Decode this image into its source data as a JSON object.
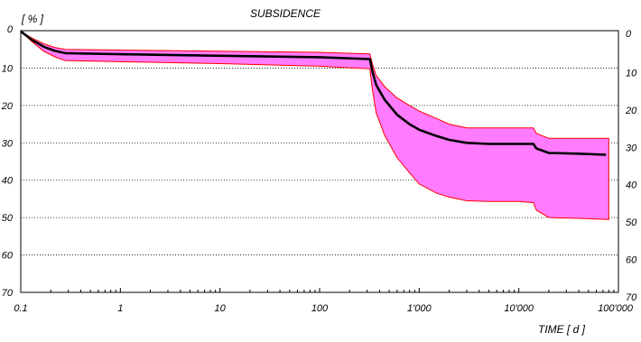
{
  "chart_data": {
    "type": "area",
    "title": "SUBSIDENCE",
    "ylabel": "[ % ]",
    "xlabel": "TIME  [ d ]",
    "x_scale": "log",
    "xlim": [
      0.1,
      100000
    ],
    "ylim": [
      0,
      70
    ],
    "y_inverted": true,
    "grid": "horizontal dotted",
    "x_ticks": [
      {
        "value": 0.1,
        "label": "0.1"
      },
      {
        "value": 1,
        "label": "1"
      },
      {
        "value": 10,
        "label": "10"
      },
      {
        "value": 100,
        "label": "100"
      },
      {
        "value": 1000,
        "label": "1'000"
      },
      {
        "value": 10000,
        "label": "10'000"
      },
      {
        "value": 100000,
        "label": "100'000"
      }
    ],
    "y_ticks": [
      {
        "value": 0,
        "label": "0"
      },
      {
        "value": 10,
        "label": "10"
      },
      {
        "value": 20,
        "label": "20"
      },
      {
        "value": 30,
        "label": "30"
      },
      {
        "value": 40,
        "label": "40"
      },
      {
        "value": 50,
        "label": "50"
      },
      {
        "value": 60,
        "label": "60"
      },
      {
        "value": 70,
        "label": "70"
      }
    ],
    "band_color": "#ff7bff",
    "band_edge_color": "#ff0000",
    "line_color": "#000000",
    "band_upper": [
      [
        0.1,
        0.2
      ],
      [
        0.13,
        2.0
      ],
      [
        0.17,
        3.5
      ],
      [
        0.22,
        4.5
      ],
      [
        0.28,
        5.0
      ],
      [
        1,
        5.2
      ],
      [
        10,
        5.5
      ],
      [
        100,
        5.8
      ],
      [
        320,
        6.2
      ],
      [
        340,
        9.0
      ],
      [
        370,
        12.0
      ],
      [
        450,
        15.0
      ],
      [
        600,
        18.0
      ],
      [
        800,
        20.0
      ],
      [
        1000,
        21.5
      ],
      [
        1500,
        23.5
      ],
      [
        2000,
        25.0
      ],
      [
        3000,
        26.0
      ],
      [
        5000,
        26.0
      ],
      [
        10000,
        26.0
      ],
      [
        14000,
        26.0
      ],
      [
        15000,
        27.5
      ],
      [
        20000,
        28.8
      ],
      [
        40000,
        28.8
      ],
      [
        80000,
        28.8
      ]
    ],
    "band_lower": [
      [
        0.1,
        0.2
      ],
      [
        0.13,
        3.0
      ],
      [
        0.17,
        5.5
      ],
      [
        0.22,
        7.0
      ],
      [
        0.28,
        8.0
      ],
      [
        1,
        8.3
      ],
      [
        10,
        8.8
      ],
      [
        100,
        9.5
      ],
      [
        320,
        10.2
      ],
      [
        340,
        16.0
      ],
      [
        370,
        22.0
      ],
      [
        450,
        28.0
      ],
      [
        600,
        34.0
      ],
      [
        800,
        38.0
      ],
      [
        1000,
        41.0
      ],
      [
        1500,
        43.5
      ],
      [
        2000,
        44.5
      ],
      [
        3000,
        45.5
      ],
      [
        5000,
        45.7
      ],
      [
        10000,
        45.7
      ],
      [
        14000,
        46.0
      ],
      [
        15000,
        48.0
      ],
      [
        20000,
        50.0
      ],
      [
        40000,
        50.2
      ],
      [
        80000,
        50.5
      ]
    ],
    "mean_line": [
      [
        0.1,
        0.2
      ],
      [
        0.13,
        2.5
      ],
      [
        0.17,
        4.3
      ],
      [
        0.22,
        5.4
      ],
      [
        0.28,
        6.0
      ],
      [
        1,
        6.3
      ],
      [
        10,
        6.7
      ],
      [
        100,
        7.1
      ],
      [
        320,
        7.6
      ],
      [
        340,
        11.0
      ],
      [
        370,
        14.5
      ],
      [
        450,
        18.5
      ],
      [
        600,
        22.5
      ],
      [
        800,
        25.0
      ],
      [
        1000,
        26.5
      ],
      [
        1500,
        28.2
      ],
      [
        2000,
        29.2
      ],
      [
        3000,
        30.0
      ],
      [
        5000,
        30.3
      ],
      [
        10000,
        30.3
      ],
      [
        14000,
        30.3
      ],
      [
        15000,
        31.5
      ],
      [
        20000,
        32.7
      ],
      [
        40000,
        32.9
      ],
      [
        75000,
        33.2
      ]
    ]
  }
}
